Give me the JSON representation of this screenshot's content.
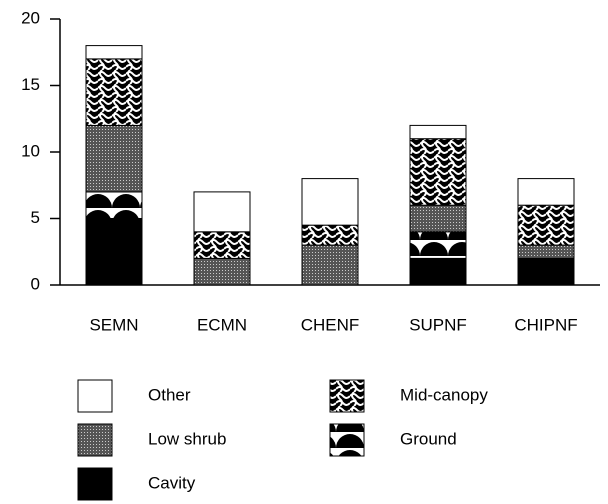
{
  "chart_data": {
    "type": "stacked_bar",
    "categories": [
      "SEMN",
      "ECMN",
      "CHENF",
      "SUPNF",
      "CHIPNF"
    ],
    "series": [
      {
        "name": "Cavity",
        "color": "#000000",
        "values": [
          5,
          0,
          0,
          2,
          2
        ]
      },
      {
        "name": "Ground",
        "color": "#ffffff",
        "values": [
          2,
          0,
          0,
          2,
          0
        ]
      },
      {
        "name": "Low shrub",
        "color": "#7a7a7a",
        "values": [
          5,
          2,
          3,
          2,
          1
        ]
      },
      {
        "name": "Mid-canopy",
        "color": "#000000",
        "values": [
          5,
          2,
          1.5,
          5,
          3
        ]
      },
      {
        "name": "Other",
        "color": "#ffffff",
        "values": [
          1,
          3,
          3.5,
          1,
          2
        ]
      }
    ],
    "ylim": [
      0,
      20
    ],
    "yticks": [
      0,
      5,
      10,
      15,
      20
    ],
    "grid": false
  }
}
